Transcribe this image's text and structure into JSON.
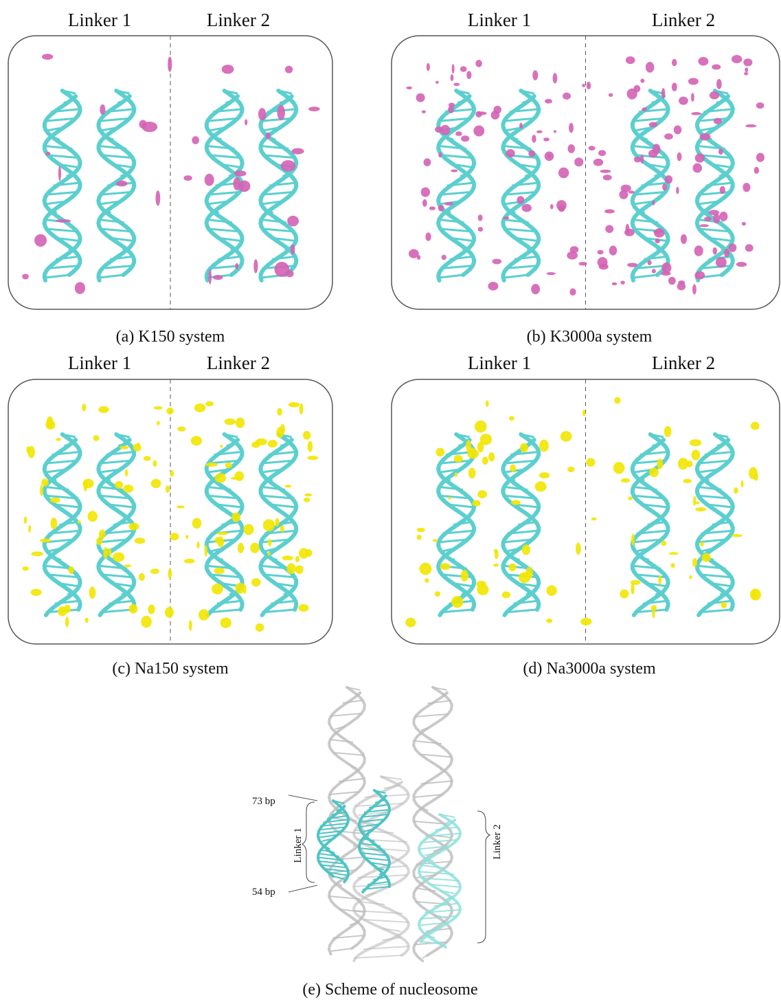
{
  "panels": [
    {
      "headers": [
        "Linker 1",
        "Linker 2"
      ],
      "caption": "(a) K150 system"
    },
    {
      "headers": [
        "Linker 1",
        "Linker 2"
      ],
      "caption": "(b) K3000a system"
    },
    {
      "headers": [
        "Linker 1",
        "Linker 2"
      ],
      "caption": "(c) Na150 system"
    },
    {
      "headers": [
        "Linker 1",
        "Linker 2"
      ],
      "caption": "(d) Na3000a system"
    }
  ],
  "scheme": {
    "top_label": "73 bp",
    "bottom_label": "54 bp",
    "linker1": "Linker 1",
    "linker2": "Linker 2",
    "caption": "(e) Scheme of nucleosome"
  }
}
